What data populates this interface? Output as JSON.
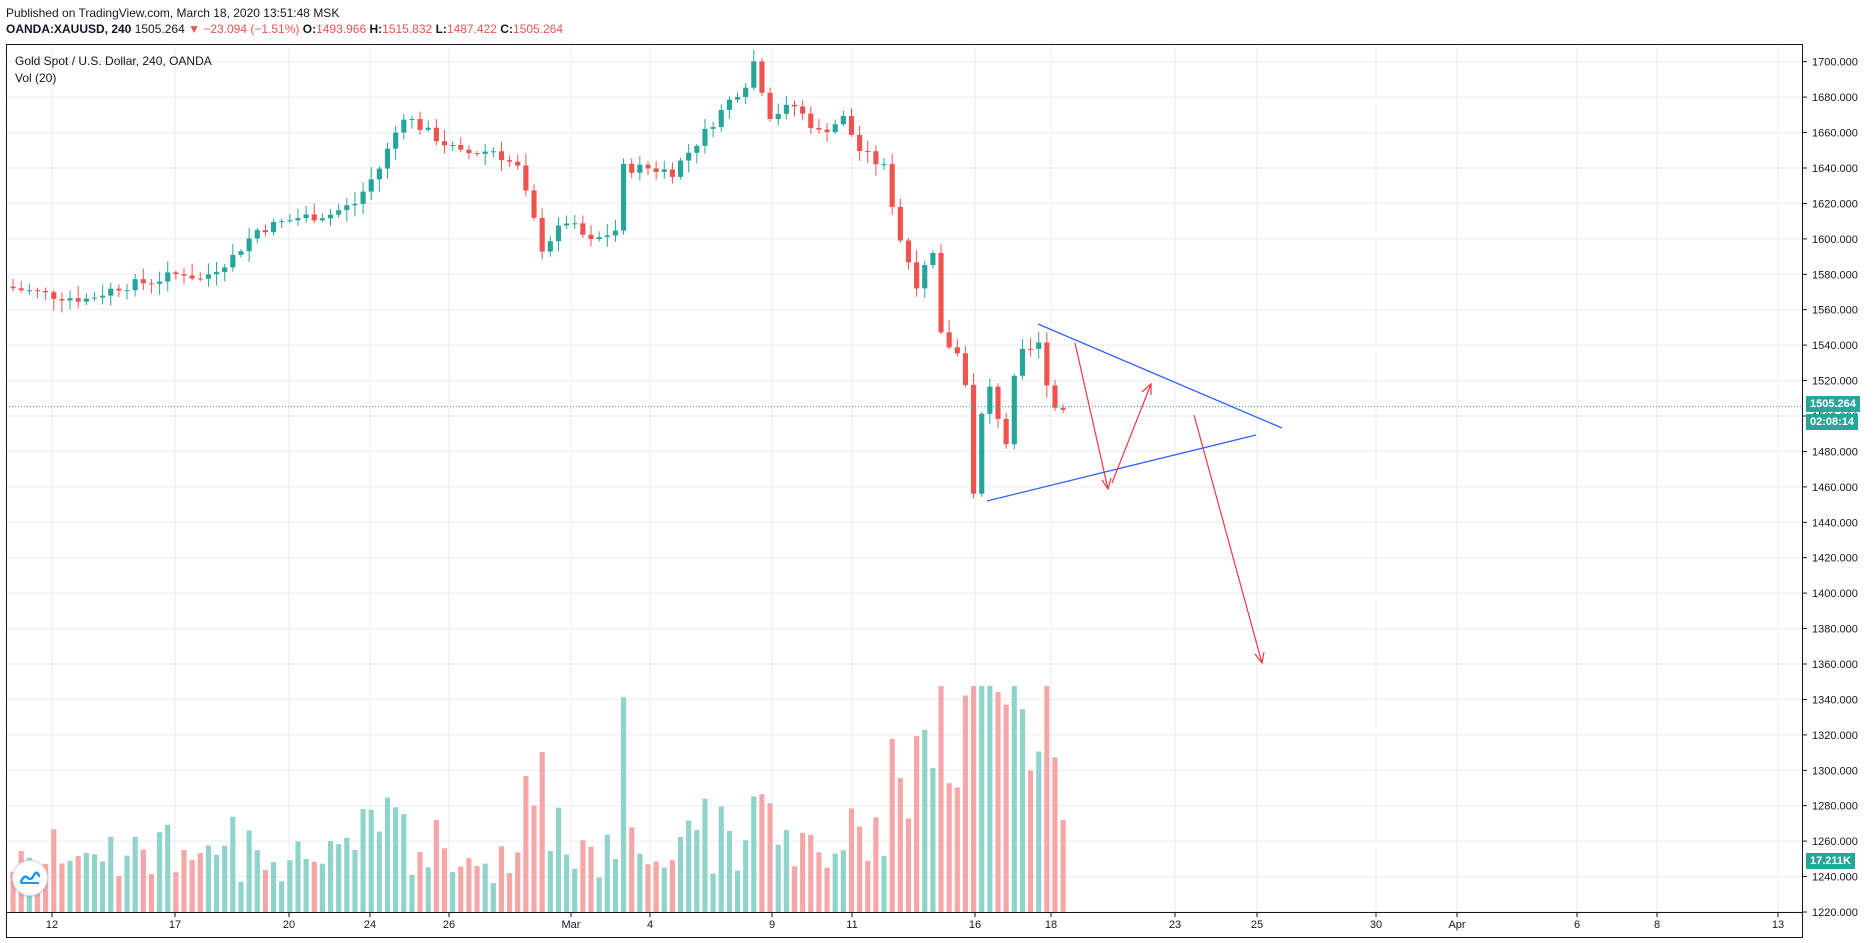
{
  "header": {
    "published": "Published on TradingView.com, March 18, 2020 13:51:48 MSK",
    "symbol": "OANDA:XAUUSD, 240",
    "last": "1505.264",
    "change": "▼ −23.094 (−1.51%)",
    "o_label": "O:",
    "o_val": "1493.966",
    "h_label": "H:",
    "h_val": "1515.832",
    "l_label": "L:",
    "l_val": "1487.422",
    "c_label": "C:",
    "c_val": "1505.264"
  },
  "legend": {
    "title": "Gold Spot / U.S. Dollar, 240, OANDA",
    "volume": "Vol (20)"
  },
  "tags": {
    "price": "1505.264",
    "countdown": "02:08:14",
    "volume": "17.211K"
  },
  "colors": {
    "up": "#26a69a",
    "down": "#ef5350",
    "up_volume": "#8fd3cb",
    "down_volume": "#f4a7a6",
    "trendline": "#2962ff",
    "arrow": "#f23645",
    "grid": "#e8ecf2"
  },
  "chart_data": {
    "type": "candlestick",
    "y_range": [
      1220,
      1710
    ],
    "y_ticks": [
      "1700.000",
      "1680.000",
      "1660.000",
      "1640.000",
      "1620.000",
      "1600.000",
      "1580.000",
      "1560.000",
      "1540.000",
      "1520.000",
      "1500.000",
      "1480.000",
      "1460.000",
      "1440.000",
      "1420.000",
      "1400.000",
      "1380.000",
      "1360.000",
      "1340.000",
      "1320.000",
      "1300.000",
      "1280.000",
      "1260.000",
      "1240.000",
      "1220.000"
    ],
    "x_ticks": [
      "12",
      "17",
      "20",
      "24",
      "26",
      "Mar",
      "4",
      "9",
      "11",
      "16",
      "18",
      "23",
      "25",
      "30",
      "Apr",
      "6",
      "8",
      "13"
    ],
    "price_path": [
      [
        0,
        1573
      ],
      [
        6,
        1568
      ],
      [
        10,
        1566
      ],
      [
        14,
        1573
      ],
      [
        18,
        1576
      ],
      [
        22,
        1581
      ],
      [
        24,
        1577
      ],
      [
        28,
        1590
      ],
      [
        31,
        1605
      ],
      [
        36,
        1612
      ],
      [
        40,
        1614
      ],
      [
        43,
        1620
      ],
      [
        46,
        1640
      ],
      [
        49,
        1670
      ],
      [
        52,
        1660
      ],
      [
        56,
        1648
      ],
      [
        60,
        1650
      ],
      [
        63,
        1640
      ],
      [
        66,
        1595
      ],
      [
        69,
        1610
      ],
      [
        72,
        1598
      ],
      [
        75,
        1605
      ],
      [
        76,
        1640
      ],
      [
        79,
        1640
      ],
      [
        82,
        1638
      ],
      [
        86,
        1660
      ],
      [
        89,
        1678
      ],
      [
        91,
        1688
      ],
      [
        92,
        1700
      ],
      [
        94,
        1670
      ],
      [
        97,
        1675
      ],
      [
        100,
        1660
      ],
      [
        103,
        1668
      ],
      [
        105,
        1650
      ],
      [
        108,
        1640
      ],
      [
        110,
        1600
      ],
      [
        112,
        1575
      ],
      [
        114,
        1590
      ],
      [
        115,
        1545
      ],
      [
        117,
        1535
      ],
      [
        118,
        1520
      ],
      [
        118.5,
        1460
      ],
      [
        119,
        1455
      ],
      [
        120,
        1500
      ],
      [
        121,
        1515
      ],
      [
        122,
        1500
      ],
      [
        123,
        1485
      ],
      [
        124,
        1520
      ],
      [
        125,
        1535
      ],
      [
        127,
        1540
      ],
      [
        128,
        1520
      ],
      [
        129,
        1505
      ]
    ],
    "volume_range": [
      0,
      17
    ]
  }
}
